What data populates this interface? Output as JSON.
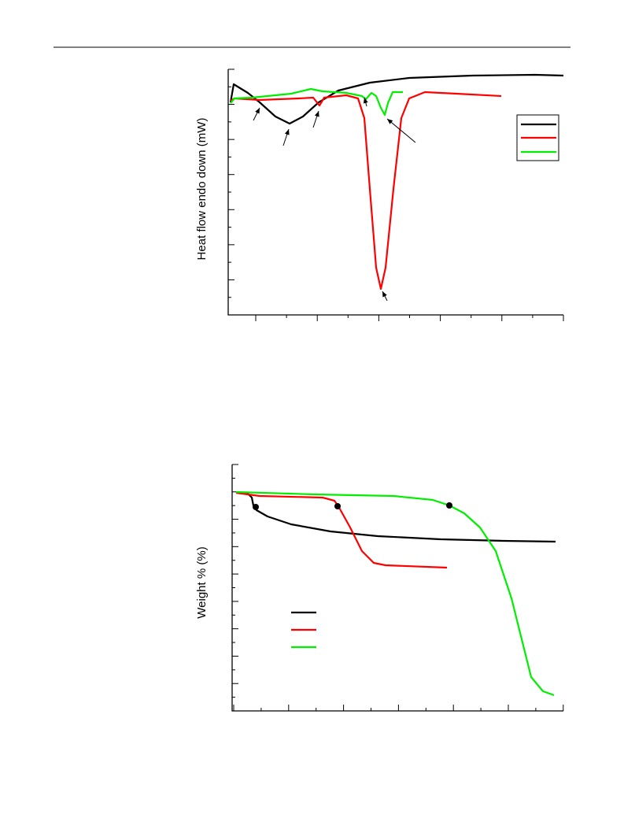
{
  "figures": [
    {
      "ylabel": "Heat flow endo down (mW)"
    },
    {
      "ylabel": "Weight % (%)"
    }
  ]
}
